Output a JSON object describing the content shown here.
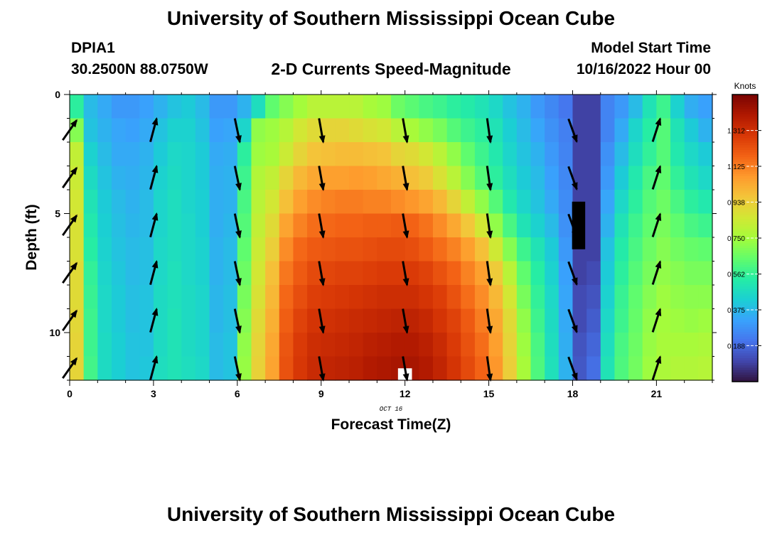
{
  "header": {
    "title": "University of Southern Mississippi Ocean Cube",
    "station_id": "DPIA1",
    "station_coords": "30.2500N  88.0750W",
    "subtitle": "2-D Currents Speed-Magnitude",
    "model_start_label": "Model Start Time",
    "model_start_value": "10/16/2022 Hour 00"
  },
  "footer": {
    "title": "University of Southern Mississippi Ocean Cube"
  },
  "colors": {
    "arrow": "#000000",
    "missing_cell": "#ffffff",
    "masked_cell": "#000000"
  },
  "chart_data": {
    "type": "heatmap",
    "xlabel": "Forecast Time(Z)",
    "ylabel": "Depth (ft)",
    "date_label": "OCT 16",
    "colorbar_label": "Knots",
    "xlim": [
      0,
      23
    ],
    "ylim": [
      0,
      12
    ],
    "x_ticks": [
      0,
      3,
      6,
      9,
      12,
      15,
      18,
      21
    ],
    "y_ticks": [
      0,
      5,
      10
    ],
    "colorbar_ticks": [
      "0.188",
      "0.375",
      "0.562",
      "0.750",
      "0.938",
      "1.125",
      "1.312"
    ],
    "colorbar_range": [
      0.0,
      1.5
    ],
    "colorbar_tick_values": [
      0.188,
      0.375,
      0.562,
      0.75,
      0.938,
      1.125,
      1.312
    ],
    "colormap": [
      "#30123b",
      "#4145ab",
      "#4675ed",
      "#39a2fc",
      "#1bcfd4",
      "#24eca6",
      "#61fc6c",
      "#a4fc3b",
      "#d1e834",
      "#f3c63a",
      "#fe9b2d",
      "#f36315",
      "#d93806",
      "#b11901",
      "#7a0402"
    ],
    "time_hours": [
      0,
      0.5,
      1,
      1.5,
      2,
      2.5,
      3,
      3.5,
      4,
      4.5,
      5,
      5.5,
      6,
      6.5,
      7,
      7.5,
      8,
      8.5,
      9,
      9.5,
      10,
      10.5,
      11,
      11.5,
      12,
      12.5,
      13,
      13.5,
      14,
      14.5,
      15,
      15.5,
      16,
      16.5,
      17,
      17.5,
      18,
      18.5,
      19,
      19.5,
      20,
      20.5,
      21,
      21.5,
      22,
      22.5
    ],
    "depth_layers": [
      {
        "depth": 0,
        "speeds": [
          0.55,
          0.38,
          0.34,
          0.3,
          0.3,
          0.32,
          0.36,
          0.4,
          0.42,
          0.38,
          0.3,
          0.3,
          0.36,
          0.48,
          0.64,
          0.7,
          0.75,
          0.8,
          0.8,
          0.8,
          0.8,
          0.76,
          0.74,
          0.66,
          0.63,
          0.6,
          0.58,
          0.55,
          0.53,
          0.5,
          0.46,
          0.4,
          0.36,
          0.3,
          0.26,
          0.22,
          0.1,
          0.1,
          0.25,
          0.3,
          0.38,
          0.5,
          0.58,
          0.44,
          0.35,
          0.32
        ]
      },
      {
        "depth": 1,
        "speeds": [
          0.7,
          0.4,
          0.36,
          0.33,
          0.32,
          0.34,
          0.4,
          0.44,
          0.44,
          0.4,
          0.32,
          0.33,
          0.45,
          0.72,
          0.74,
          0.79,
          0.86,
          0.9,
          0.92,
          0.92,
          0.9,
          0.88,
          0.86,
          0.8,
          0.76,
          0.72,
          0.68,
          0.62,
          0.58,
          0.55,
          0.5,
          0.43,
          0.38,
          0.33,
          0.28,
          0.24,
          0.1,
          0.1,
          0.25,
          0.34,
          0.45,
          0.54,
          0.62,
          0.5,
          0.42,
          0.36
        ]
      },
      {
        "depth": 2,
        "speeds": [
          0.82,
          0.44,
          0.38,
          0.34,
          0.34,
          0.36,
          0.42,
          0.46,
          0.45,
          0.42,
          0.34,
          0.35,
          0.55,
          0.74,
          0.76,
          0.84,
          0.92,
          0.97,
          0.98,
          0.99,
          0.99,
          0.98,
          0.97,
          0.92,
          0.9,
          0.86,
          0.8,
          0.72,
          0.64,
          0.58,
          0.52,
          0.45,
          0.4,
          0.36,
          0.3,
          0.25,
          0.1,
          0.1,
          0.28,
          0.38,
          0.48,
          0.56,
          0.62,
          0.52,
          0.46,
          0.42
        ]
      },
      {
        "depth": 3,
        "speeds": [
          0.84,
          0.47,
          0.4,
          0.36,
          0.35,
          0.37,
          0.44,
          0.47,
          0.45,
          0.42,
          0.35,
          0.36,
          0.58,
          0.78,
          0.82,
          0.92,
          1.0,
          1.04,
          1.06,
          1.06,
          1.07,
          1.06,
          1.04,
          1.02,
          0.98,
          0.95,
          0.88,
          0.8,
          0.7,
          0.62,
          0.55,
          0.48,
          0.42,
          0.38,
          0.32,
          0.26,
          0.1,
          0.1,
          0.3,
          0.42,
          0.52,
          0.6,
          0.64,
          0.56,
          0.5,
          0.46
        ]
      },
      {
        "depth": 4,
        "speeds": [
          0.86,
          0.5,
          0.42,
          0.38,
          0.36,
          0.38,
          0.45,
          0.48,
          0.45,
          0.43,
          0.35,
          0.36,
          0.6,
          0.8,
          0.86,
          0.98,
          1.06,
          1.1,
          1.12,
          1.13,
          1.13,
          1.12,
          1.12,
          1.1,
          1.08,
          1.05,
          1.0,
          0.92,
          0.82,
          0.72,
          0.62,
          0.52,
          0.45,
          0.4,
          0.34,
          0.27,
          0.1,
          0.1,
          0.33,
          0.46,
          0.55,
          0.62,
          0.66,
          0.6,
          0.55,
          0.52
        ]
      },
      {
        "depth": 5,
        "speeds": [
          0.88,
          0.52,
          0.43,
          0.39,
          0.37,
          0.38,
          0.45,
          0.48,
          0.46,
          0.43,
          0.35,
          0.37,
          0.62,
          0.82,
          0.9,
          1.05,
          1.12,
          1.16,
          1.17,
          1.18,
          1.18,
          1.19,
          1.19,
          1.2,
          1.18,
          1.15,
          1.1,
          1.04,
          0.96,
          0.86,
          0.72,
          0.6,
          0.5,
          0.44,
          0.38,
          0.28,
          0.1,
          0.1,
          0.36,
          0.5,
          0.58,
          0.64,
          0.68,
          0.64,
          0.6,
          0.58
        ]
      },
      {
        "depth": 6,
        "speeds": [
          0.88,
          0.54,
          0.44,
          0.4,
          0.38,
          0.39,
          0.46,
          0.48,
          0.46,
          0.44,
          0.36,
          0.38,
          0.64,
          0.84,
          0.94,
          1.1,
          1.17,
          1.2,
          1.21,
          1.22,
          1.22,
          1.23,
          1.24,
          1.24,
          1.23,
          1.2,
          1.16,
          1.12,
          1.06,
          0.98,
          0.85,
          0.7,
          0.58,
          0.5,
          0.42,
          0.3,
          0.1,
          0.1,
          0.4,
          0.53,
          0.6,
          0.66,
          0.7,
          0.67,
          0.65,
          0.64
        ]
      },
      {
        "depth": 7,
        "speeds": [
          0.9,
          0.56,
          0.45,
          0.41,
          0.38,
          0.39,
          0.46,
          0.49,
          0.46,
          0.44,
          0.36,
          0.38,
          0.66,
          0.86,
          0.98,
          1.14,
          1.2,
          1.24,
          1.25,
          1.26,
          1.26,
          1.27,
          1.28,
          1.28,
          1.28,
          1.26,
          1.22,
          1.18,
          1.12,
          1.06,
          0.95,
          0.8,
          0.64,
          0.54,
          0.44,
          0.32,
          0.1,
          0.12,
          0.42,
          0.55,
          0.62,
          0.68,
          0.72,
          0.7,
          0.68,
          0.68
        ]
      },
      {
        "depth": 8,
        "speeds": [
          0.9,
          0.57,
          0.46,
          0.42,
          0.39,
          0.4,
          0.47,
          0.49,
          0.47,
          0.45,
          0.37,
          0.39,
          0.68,
          0.88,
          1.0,
          1.17,
          1.23,
          1.27,
          1.28,
          1.29,
          1.3,
          1.31,
          1.32,
          1.32,
          1.32,
          1.3,
          1.27,
          1.22,
          1.16,
          1.1,
          1.0,
          0.86,
          0.68,
          0.56,
          0.46,
          0.33,
          0.12,
          0.14,
          0.44,
          0.57,
          0.64,
          0.7,
          0.74,
          0.72,
          0.71,
          0.71
        ]
      },
      {
        "depth": 9,
        "speeds": [
          0.91,
          0.58,
          0.46,
          0.42,
          0.39,
          0.4,
          0.47,
          0.5,
          0.47,
          0.45,
          0.37,
          0.39,
          0.7,
          0.9,
          1.02,
          1.19,
          1.26,
          1.3,
          1.31,
          1.32,
          1.33,
          1.34,
          1.35,
          1.36,
          1.36,
          1.34,
          1.3,
          1.26,
          1.2,
          1.13,
          1.04,
          0.9,
          0.72,
          0.58,
          0.47,
          0.34,
          0.12,
          0.16,
          0.46,
          0.58,
          0.65,
          0.72,
          0.75,
          0.74,
          0.73,
          0.74
        ]
      },
      {
        "depth": 10,
        "speeds": [
          0.92,
          0.58,
          0.47,
          0.43,
          0.4,
          0.4,
          0.47,
          0.5,
          0.47,
          0.45,
          0.38,
          0.4,
          0.72,
          0.92,
          1.04,
          1.21,
          1.28,
          1.32,
          1.33,
          1.34,
          1.35,
          1.37,
          1.38,
          1.39,
          1.39,
          1.37,
          1.33,
          1.28,
          1.22,
          1.16,
          1.06,
          0.92,
          0.74,
          0.6,
          0.48,
          0.35,
          0.14,
          0.18,
          0.48,
          0.6,
          0.66,
          0.73,
          0.76,
          0.76,
          0.76,
          0.77
        ]
      },
      {
        "depth": 11,
        "speeds": [
          0.92,
          0.59,
          0.47,
          0.43,
          0.4,
          0.41,
          0.48,
          0.5,
          0.48,
          0.46,
          0.38,
          0.4,
          0.73,
          0.93,
          1.05,
          1.22,
          1.29,
          1.33,
          1.35,
          1.36,
          1.37,
          1.39,
          1.4,
          1.41,
          1.41,
          1.39,
          1.35,
          1.3,
          1.24,
          1.18,
          1.08,
          0.94,
          0.76,
          0.61,
          0.49,
          0.36,
          0.15,
          0.2,
          0.5,
          0.61,
          0.67,
          0.74,
          0.77,
          0.78,
          0.78,
          0.79
        ]
      }
    ],
    "missing_cells": [
      {
        "time": 12,
        "depth_range": [
          11.5,
          12
        ]
      }
    ],
    "masked_cells": [
      {
        "time": 18,
        "depth_range": [
          4.5,
          6.5
        ]
      }
    ],
    "vector_depths": [
      1.5,
      3.5,
      5.5,
      7.5,
      9.5,
      11.5
    ],
    "vectors": [
      {
        "time": 0,
        "direction_deg": 35,
        "note": "NE"
      },
      {
        "time": 3,
        "direction_deg": 15,
        "note": "NNE"
      },
      {
        "time": 6,
        "direction_deg": 168,
        "note": "SSE"
      },
      {
        "time": 9,
        "direction_deg": 170,
        "note": "S"
      },
      {
        "time": 12,
        "direction_deg": 170,
        "note": "S"
      },
      {
        "time": 15,
        "direction_deg": 172,
        "note": "S"
      },
      {
        "time": 18,
        "direction_deg": 160,
        "note": "SSE"
      },
      {
        "time": 21,
        "direction_deg": 18,
        "note": "NNE"
      }
    ]
  }
}
